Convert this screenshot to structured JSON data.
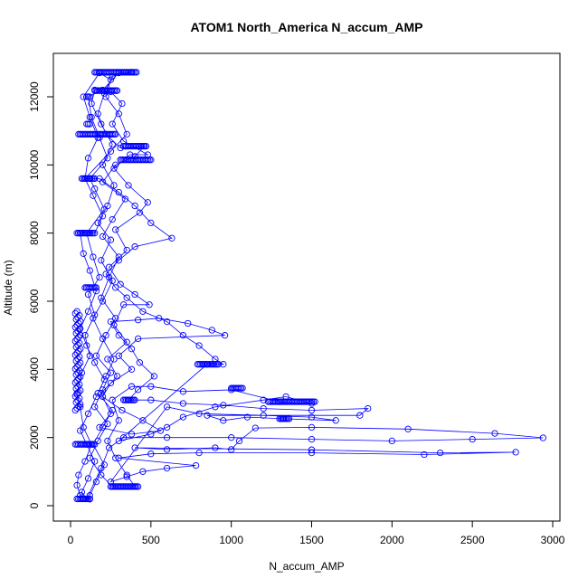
{
  "chart_data": {
    "type": "scatter",
    "title": "ATOM1 North_America N_accum_AMP",
    "xlabel": "N_accum_AMP",
    "ylabel": "Altitude (m)",
    "xlim": [
      0,
      3000
    ],
    "ylim": [
      0,
      12800
    ],
    "x_ticks": [
      "0",
      "500",
      "1000",
      "1500",
      "2000",
      "2500",
      "3000"
    ],
    "y_ticks": [
      "0",
      "2000",
      "4000",
      "6000",
      "8000",
      "10000",
      "12000"
    ],
    "grid": false,
    "legend": "none",
    "marker": "open-circle",
    "connected_by_line": true,
    "color": "#0000ff",
    "series": [
      {
        "points": [
          [
            80,
            200
          ],
          [
            120,
            190
          ],
          [
            60,
            300
          ],
          [
            40,
            600
          ],
          [
            50,
            900
          ],
          [
            90,
            1300
          ],
          [
            130,
            1800
          ],
          [
            80,
            2300
          ],
          [
            60,
            2900
          ],
          [
            40,
            3300
          ],
          [
            70,
            3900
          ],
          [
            120,
            4400
          ],
          [
            90,
            5000
          ],
          [
            150,
            5600
          ],
          [
            110,
            6200
          ],
          [
            180,
            6700
          ],
          [
            140,
            7300
          ],
          [
            100,
            8000
          ],
          [
            210,
            8700
          ],
          [
            150,
            9300
          ],
          [
            120,
            9600
          ],
          [
            230,
            10200
          ],
          [
            180,
            10800
          ],
          [
            130,
            11400
          ],
          [
            110,
            12000
          ],
          [
            200,
            12200
          ],
          [
            300,
            12700
          ],
          [
            380,
            12720
          ],
          [
            260,
            12600
          ],
          [
            210,
            12100
          ],
          [
            170,
            11500
          ],
          [
            220,
            10900
          ],
          [
            310,
            10500
          ],
          [
            460,
            10550
          ],
          [
            400,
            10250
          ],
          [
            280,
            10000
          ],
          [
            200,
            9500
          ],
          [
            340,
            9000
          ],
          [
            260,
            8400
          ],
          [
            200,
            7900
          ],
          [
            300,
            7300
          ],
          [
            240,
            6700
          ],
          [
            190,
            6100
          ],
          [
            280,
            5500
          ],
          [
            220,
            5000
          ],
          [
            160,
            4400
          ],
          [
            250,
            3900
          ],
          [
            200,
            3400
          ],
          [
            150,
            2900
          ],
          [
            230,
            2400
          ],
          [
            170,
            1900
          ],
          [
            120,
            1400
          ],
          [
            190,
            900
          ],
          [
            260,
            560
          ],
          [
            400,
            560
          ],
          [
            350,
            900
          ],
          [
            280,
            1400
          ],
          [
            230,
            1900
          ],
          [
            300,
            2500
          ],
          [
            260,
            3100
          ],
          [
            380,
            3500
          ],
          [
            500,
            3500
          ],
          [
            700,
            3350
          ],
          [
            1000,
            3400
          ],
          [
            1300,
            3050
          ],
          [
            1500,
            3000
          ],
          [
            1340,
            3200
          ],
          [
            1200,
            3100
          ],
          [
            900,
            2900
          ],
          [
            700,
            2600
          ],
          [
            600,
            2300
          ],
          [
            500,
            2100
          ],
          [
            300,
            1900
          ],
          [
            850,
            4150
          ],
          [
            950,
            4150
          ],
          [
            900,
            4300
          ],
          [
            800,
            4700
          ],
          [
            700,
            5000
          ],
          [
            600,
            5400
          ],
          [
            450,
            5700
          ],
          [
            350,
            6100
          ],
          [
            280,
            6400
          ],
          [
            220,
            6800
          ],
          [
            300,
            7200
          ],
          [
            400,
            7600
          ],
          [
            630,
            7850
          ],
          [
            500,
            8300
          ],
          [
            400,
            8800
          ],
          [
            300,
            9200
          ],
          [
            180,
            9600
          ],
          [
            90,
            9600
          ],
          [
            250,
            10400
          ],
          [
            350,
            10900
          ],
          [
            300,
            11500
          ],
          [
            220,
            12000
          ],
          [
            250,
            12500
          ],
          [
            180,
            12700
          ],
          [
            80,
            12000
          ],
          [
            120,
            11400
          ],
          [
            170,
            10800
          ],
          [
            110,
            10200
          ],
          [
            90,
            9600
          ],
          [
            140,
            9100
          ],
          [
            200,
            8500
          ],
          [
            150,
            8000
          ],
          [
            60,
            8000
          ],
          [
            80,
            7400
          ],
          [
            120,
            6900
          ],
          [
            160,
            6300
          ],
          [
            110,
            5700
          ],
          [
            60,
            5200
          ],
          [
            100,
            4700
          ],
          [
            150,
            4200
          ],
          [
            210,
            3700
          ],
          [
            160,
            3200
          ],
          [
            110,
            2700
          ],
          [
            60,
            2200
          ],
          [
            100,
            1800
          ],
          [
            150,
            1300
          ],
          [
            110,
            800
          ],
          [
            70,
            400
          ],
          [
            100,
            200
          ],
          [
            190,
            1100
          ],
          [
            240,
            1700
          ],
          [
            330,
            2000
          ],
          [
            600,
            2000
          ],
          [
            1000,
            2000
          ],
          [
            1500,
            1950
          ],
          [
            2000,
            1900
          ],
          [
            2500,
            1950
          ],
          [
            2940,
            1990
          ],
          [
            2640,
            2120
          ],
          [
            2100,
            2250
          ],
          [
            1500,
            2300
          ],
          [
            1150,
            2280
          ],
          [
            1050,
            1900
          ],
          [
            1000,
            1650
          ],
          [
            900,
            1700
          ],
          [
            600,
            1650
          ],
          [
            400,
            1700
          ],
          [
            1500,
            1640
          ],
          [
            2300,
            1550
          ],
          [
            2770,
            1570
          ],
          [
            2200,
            1500
          ],
          [
            1500,
            1550
          ],
          [
            800,
            1550
          ],
          [
            500,
            1520
          ],
          [
            300,
            1400
          ],
          [
            780,
            1180
          ],
          [
            600,
            1100
          ],
          [
            450,
            1000
          ],
          [
            350,
            850
          ],
          [
            250,
            700
          ],
          [
            600,
            2900
          ],
          [
            800,
            2700
          ],
          [
            1200,
            2650
          ],
          [
            1500,
            2600
          ],
          [
            1650,
            2500
          ],
          [
            1320,
            2550
          ],
          [
            1100,
            2600
          ],
          [
            950,
            2500
          ],
          [
            850,
            2650
          ],
          [
            1800,
            2650
          ],
          [
            1850,
            2850
          ],
          [
            1500,
            2800
          ],
          [
            1200,
            2850
          ],
          [
            950,
            2950
          ],
          [
            700,
            3000
          ],
          [
            500,
            3100
          ],
          [
            360,
            3100
          ],
          [
            420,
            3400
          ],
          [
            520,
            3800
          ],
          [
            430,
            4200
          ],
          [
            380,
            4600
          ],
          [
            300,
            5000
          ],
          [
            250,
            5400
          ],
          [
            420,
            5450
          ],
          [
            550,
            5500
          ],
          [
            730,
            5350
          ],
          [
            880,
            5150
          ],
          [
            960,
            5000
          ],
          [
            420,
            4900
          ],
          [
            300,
            4400
          ],
          [
            380,
            4000
          ],
          [
            250,
            3600
          ],
          [
            200,
            3200
          ],
          [
            320,
            2800
          ],
          [
            450,
            2500
          ],
          [
            560,
            2200
          ],
          [
            380,
            2100
          ],
          [
            180,
            2300
          ],
          [
            250,
            2700
          ],
          [
            190,
            3300
          ],
          [
            290,
            3800
          ],
          [
            230,
            4300
          ],
          [
            350,
            4800
          ],
          [
            270,
            5300
          ],
          [
            330,
            5900
          ],
          [
            490,
            5900
          ],
          [
            400,
            6200
          ],
          [
            310,
            6500
          ],
          [
            240,
            7000
          ],
          [
            350,
            7500
          ],
          [
            280,
            8100
          ],
          [
            430,
            8600
          ],
          [
            480,
            8900
          ],
          [
            360,
            9400
          ],
          [
            270,
            9900
          ],
          [
            370,
            10300
          ],
          [
            480,
            10300
          ],
          [
            330,
            10700
          ],
          [
            260,
            11200
          ],
          [
            320,
            11800
          ],
          [
            250,
            12150
          ],
          [
            150,
            12200
          ],
          [
            130,
            11800
          ],
          [
            190,
            11200
          ],
          [
            260,
            10600
          ],
          [
            200,
            10000
          ],
          [
            270,
            9400
          ],
          [
            230,
            8800
          ],
          [
            170,
            8300
          ],
          [
            250,
            7800
          ],
          [
            190,
            7200
          ],
          [
            260,
            6600
          ],
          [
            200,
            6000
          ],
          [
            140,
            5500
          ],
          [
            200,
            4900
          ],
          [
            270,
            4300
          ],
          [
            220,
            3800
          ],
          [
            170,
            3300
          ],
          [
            260,
            2800
          ],
          [
            200,
            2300
          ],
          [
            140,
            1800
          ],
          [
            210,
            1200
          ],
          [
            160,
            700
          ],
          [
            120,
            300
          ]
        ]
      }
    ],
    "dense_bands": [
      {
        "y": 12720,
        "x_from": 150,
        "x_to": 410
      },
      {
        "y": 12180,
        "x_from": 150,
        "x_to": 290
      },
      {
        "y": 12000,
        "x_from": 100,
        "x_to": 120
      },
      {
        "y": 11200,
        "x_from": 100,
        "x_to": 120
      },
      {
        "y": 10900,
        "x_from": 50,
        "x_to": 280
      },
      {
        "y": 10550,
        "x_from": 330,
        "x_to": 470
      },
      {
        "y": 10150,
        "x_from": 310,
        "x_to": 500
      },
      {
        "y": 9600,
        "x_from": 70,
        "x_to": 150
      },
      {
        "y": 8000,
        "x_from": 40,
        "x_to": 140
      },
      {
        "y": 6400,
        "x_from": 90,
        "x_to": 160
      },
      {
        "y": 4150,
        "x_from": 790,
        "x_to": 920
      },
      {
        "y": 3450,
        "x_from": 1000,
        "x_to": 1070
      },
      {
        "y": 3050,
        "x_from": 1230,
        "x_to": 1520
      },
      {
        "y": 3100,
        "x_from": 330,
        "x_to": 400
      },
      {
        "y": 2550,
        "x_from": 1300,
        "x_to": 1360
      },
      {
        "y": 1800,
        "x_from": 30,
        "x_to": 150
      },
      {
        "y": 560,
        "x_from": 250,
        "x_to": 420
      },
      {
        "y": 200,
        "x_from": 40,
        "x_to": 120
      }
    ],
    "left_edge_column": {
      "x": 30,
      "y_from": 2800,
      "y_to": 5700
    }
  }
}
